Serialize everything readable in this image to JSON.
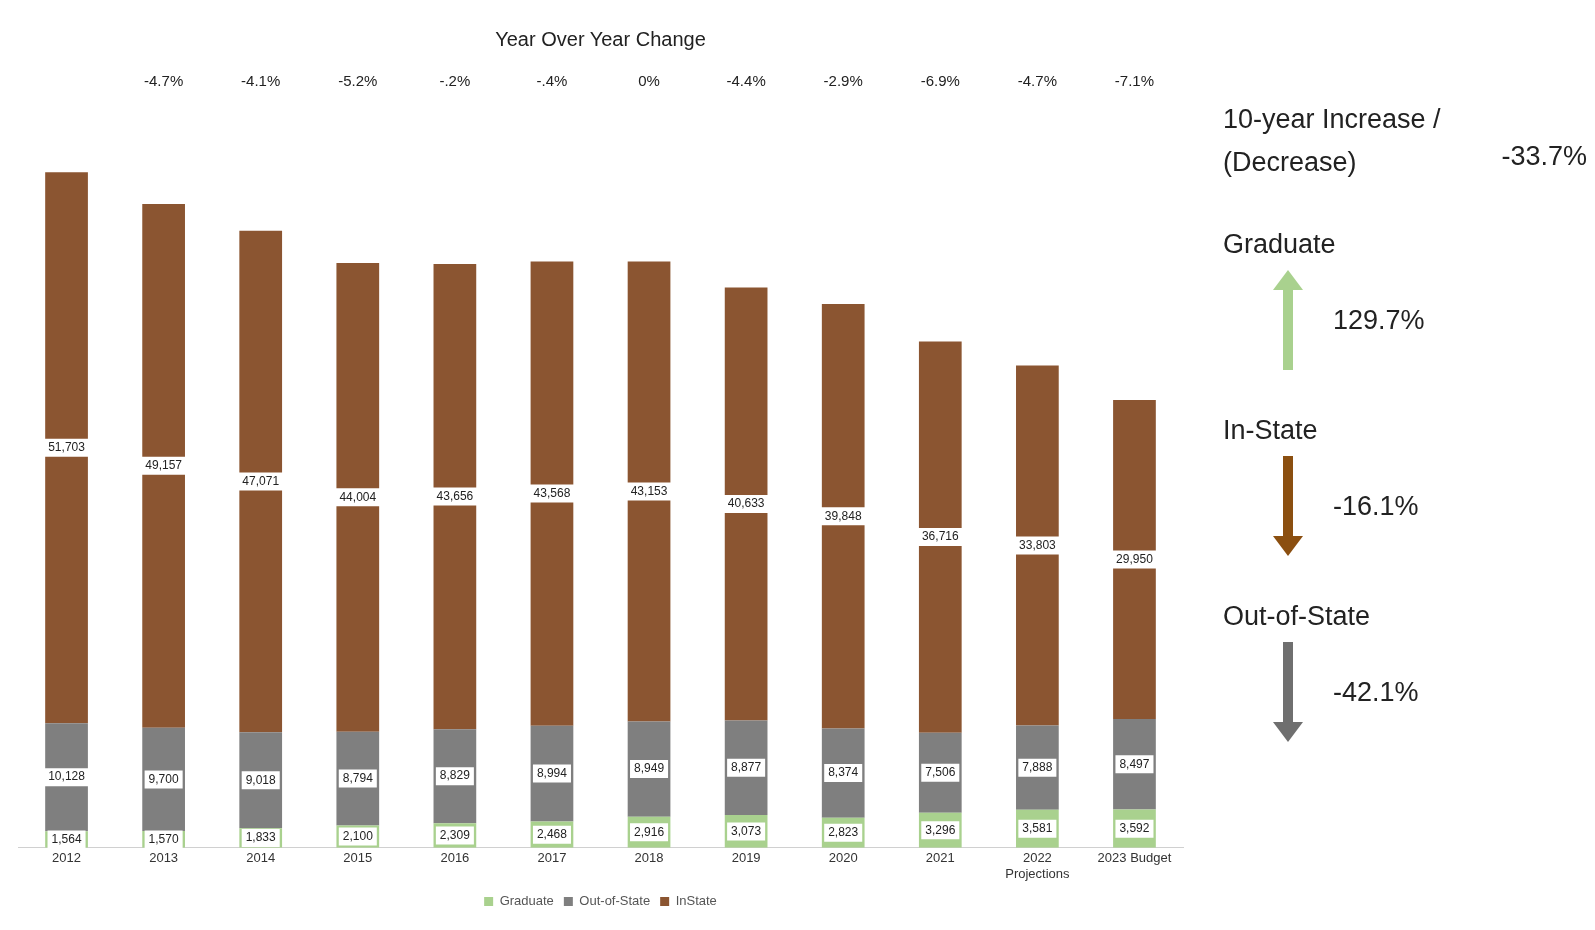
{
  "chart_data": {
    "type": "bar",
    "title": "Year Over Year Change",
    "stacked": true,
    "legend": "bottom",
    "grid": false,
    "categories": [
      "2012",
      "2013",
      "2014",
      "2015",
      "2016",
      "2017",
      "2018",
      "2019",
      "2020",
      "2021",
      "2022\nProjections",
      "2023 Budget"
    ],
    "series": [
      {
        "name": "Graduate",
        "color": "#a9d18e",
        "values": [
          1564,
          1570,
          1833,
          2100,
          2309,
          2468,
          2916,
          3073,
          2823,
          3296,
          3581,
          3592
        ],
        "value_labels": [
          "1,564",
          "1,570",
          "1,833",
          "2,100",
          "2,309",
          "2,468",
          "2,916",
          "3,073",
          "2,823",
          "3,296",
          "3,581",
          "3,592"
        ]
      },
      {
        "name": "Out-of-State",
        "color": "#7f7f7f",
        "values": [
          10128,
          9700,
          9018,
          8794,
          8829,
          8994,
          8949,
          8877,
          8374,
          7506,
          7888,
          8497
        ],
        "value_labels": [
          "10,128",
          "9,700",
          "9,018",
          "8,794",
          "8,829",
          "8,994",
          "8,949",
          "8,877",
          "8,374",
          "7,506",
          "7,888",
          "8,497"
        ]
      },
      {
        "name": "InState",
        "color": "#8b5531",
        "values": [
          51703,
          49157,
          47071,
          44004,
          43656,
          43568,
          43153,
          40633,
          39848,
          36716,
          33803,
          29950
        ],
        "value_labels": [
          "51,703",
          "49,157",
          "47,071",
          "44,004",
          "43,656",
          "43,568",
          "43,153",
          "40,633",
          "39,848",
          "36,716",
          "33,803",
          "29,950"
        ]
      }
    ],
    "annotations": [
      "-4.7%",
      "-4.1%",
      "-5.2%",
      "-.2%",
      "-.4%",
      "0%",
      "-4.4%",
      "-2.9%",
      "-6.9%",
      "-4.7%",
      "-7.1%",
      "10-year Increase / (Decrease)",
      "-33.7%",
      "Graduate",
      "129.7%",
      "In-State",
      "-16.1%",
      "Out-of-State",
      "-42.1%"
    ]
  }
}
